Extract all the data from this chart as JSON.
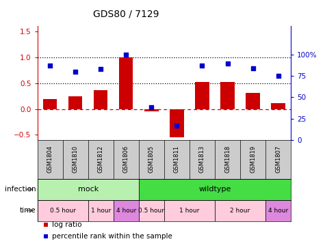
{
  "title": "GDS80 / 7129",
  "samples": [
    "GSM1804",
    "GSM1810",
    "GSM1812",
    "GSM1806",
    "GSM1805",
    "GSM1811",
    "GSM1813",
    "GSM1818",
    "GSM1819",
    "GSM1807"
  ],
  "log_ratio": [
    0.19,
    0.24,
    0.37,
    1.0,
    -0.04,
    -0.55,
    0.52,
    0.52,
    0.31,
    0.11
  ],
  "percentile_pct": [
    87,
    80,
    83,
    100,
    38,
    17,
    87,
    90,
    84,
    75
  ],
  "bar_color": "#cc0000",
  "scatter_color": "#0000cc",
  "ylim_left": [
    -0.6,
    1.6
  ],
  "yticks_left": [
    -0.5,
    0.0,
    0.5,
    1.0,
    1.5
  ],
  "yticks_right_labels": [
    "0",
    "25",
    "50",
    "75",
    "100%"
  ],
  "yticks_right_vals": [
    0,
    25,
    50,
    75,
    100
  ],
  "hlines_dotted": [
    0.5,
    1.0
  ],
  "hline_dashed": 0.0,
  "infection_groups": [
    {
      "label": "mock",
      "start": 0,
      "end": 4,
      "color": "#b8f0b0"
    },
    {
      "label": "wildtype",
      "start": 4,
      "end": 10,
      "color": "#44dd44"
    }
  ],
  "time_groups": [
    {
      "label": "0.5 hour",
      "start": 0,
      "end": 2,
      "color": "#ffccdd"
    },
    {
      "label": "1 hour",
      "start": 2,
      "end": 3,
      "color": "#ffccdd"
    },
    {
      "label": "4 hour",
      "start": 3,
      "end": 4,
      "color": "#dd88dd"
    },
    {
      "label": "0.5 hour",
      "start": 4,
      "end": 5,
      "color": "#ffccdd"
    },
    {
      "label": "1 hour",
      "start": 5,
      "end": 7,
      "color": "#ffccdd"
    },
    {
      "label": "2 hour",
      "start": 7,
      "end": 9,
      "color": "#ffccdd"
    },
    {
      "label": "4 hour",
      "start": 9,
      "end": 10,
      "color": "#dd88dd"
    }
  ],
  "legend_items": [
    {
      "label": "log ratio",
      "color": "#cc0000"
    },
    {
      "label": "percentile rank within the sample",
      "color": "#0000cc"
    }
  ],
  "infection_label": "infection",
  "time_label": "time",
  "bg_color": "#ffffff",
  "label_bg": "#cccccc",
  "chart_bg": "#ffffff"
}
